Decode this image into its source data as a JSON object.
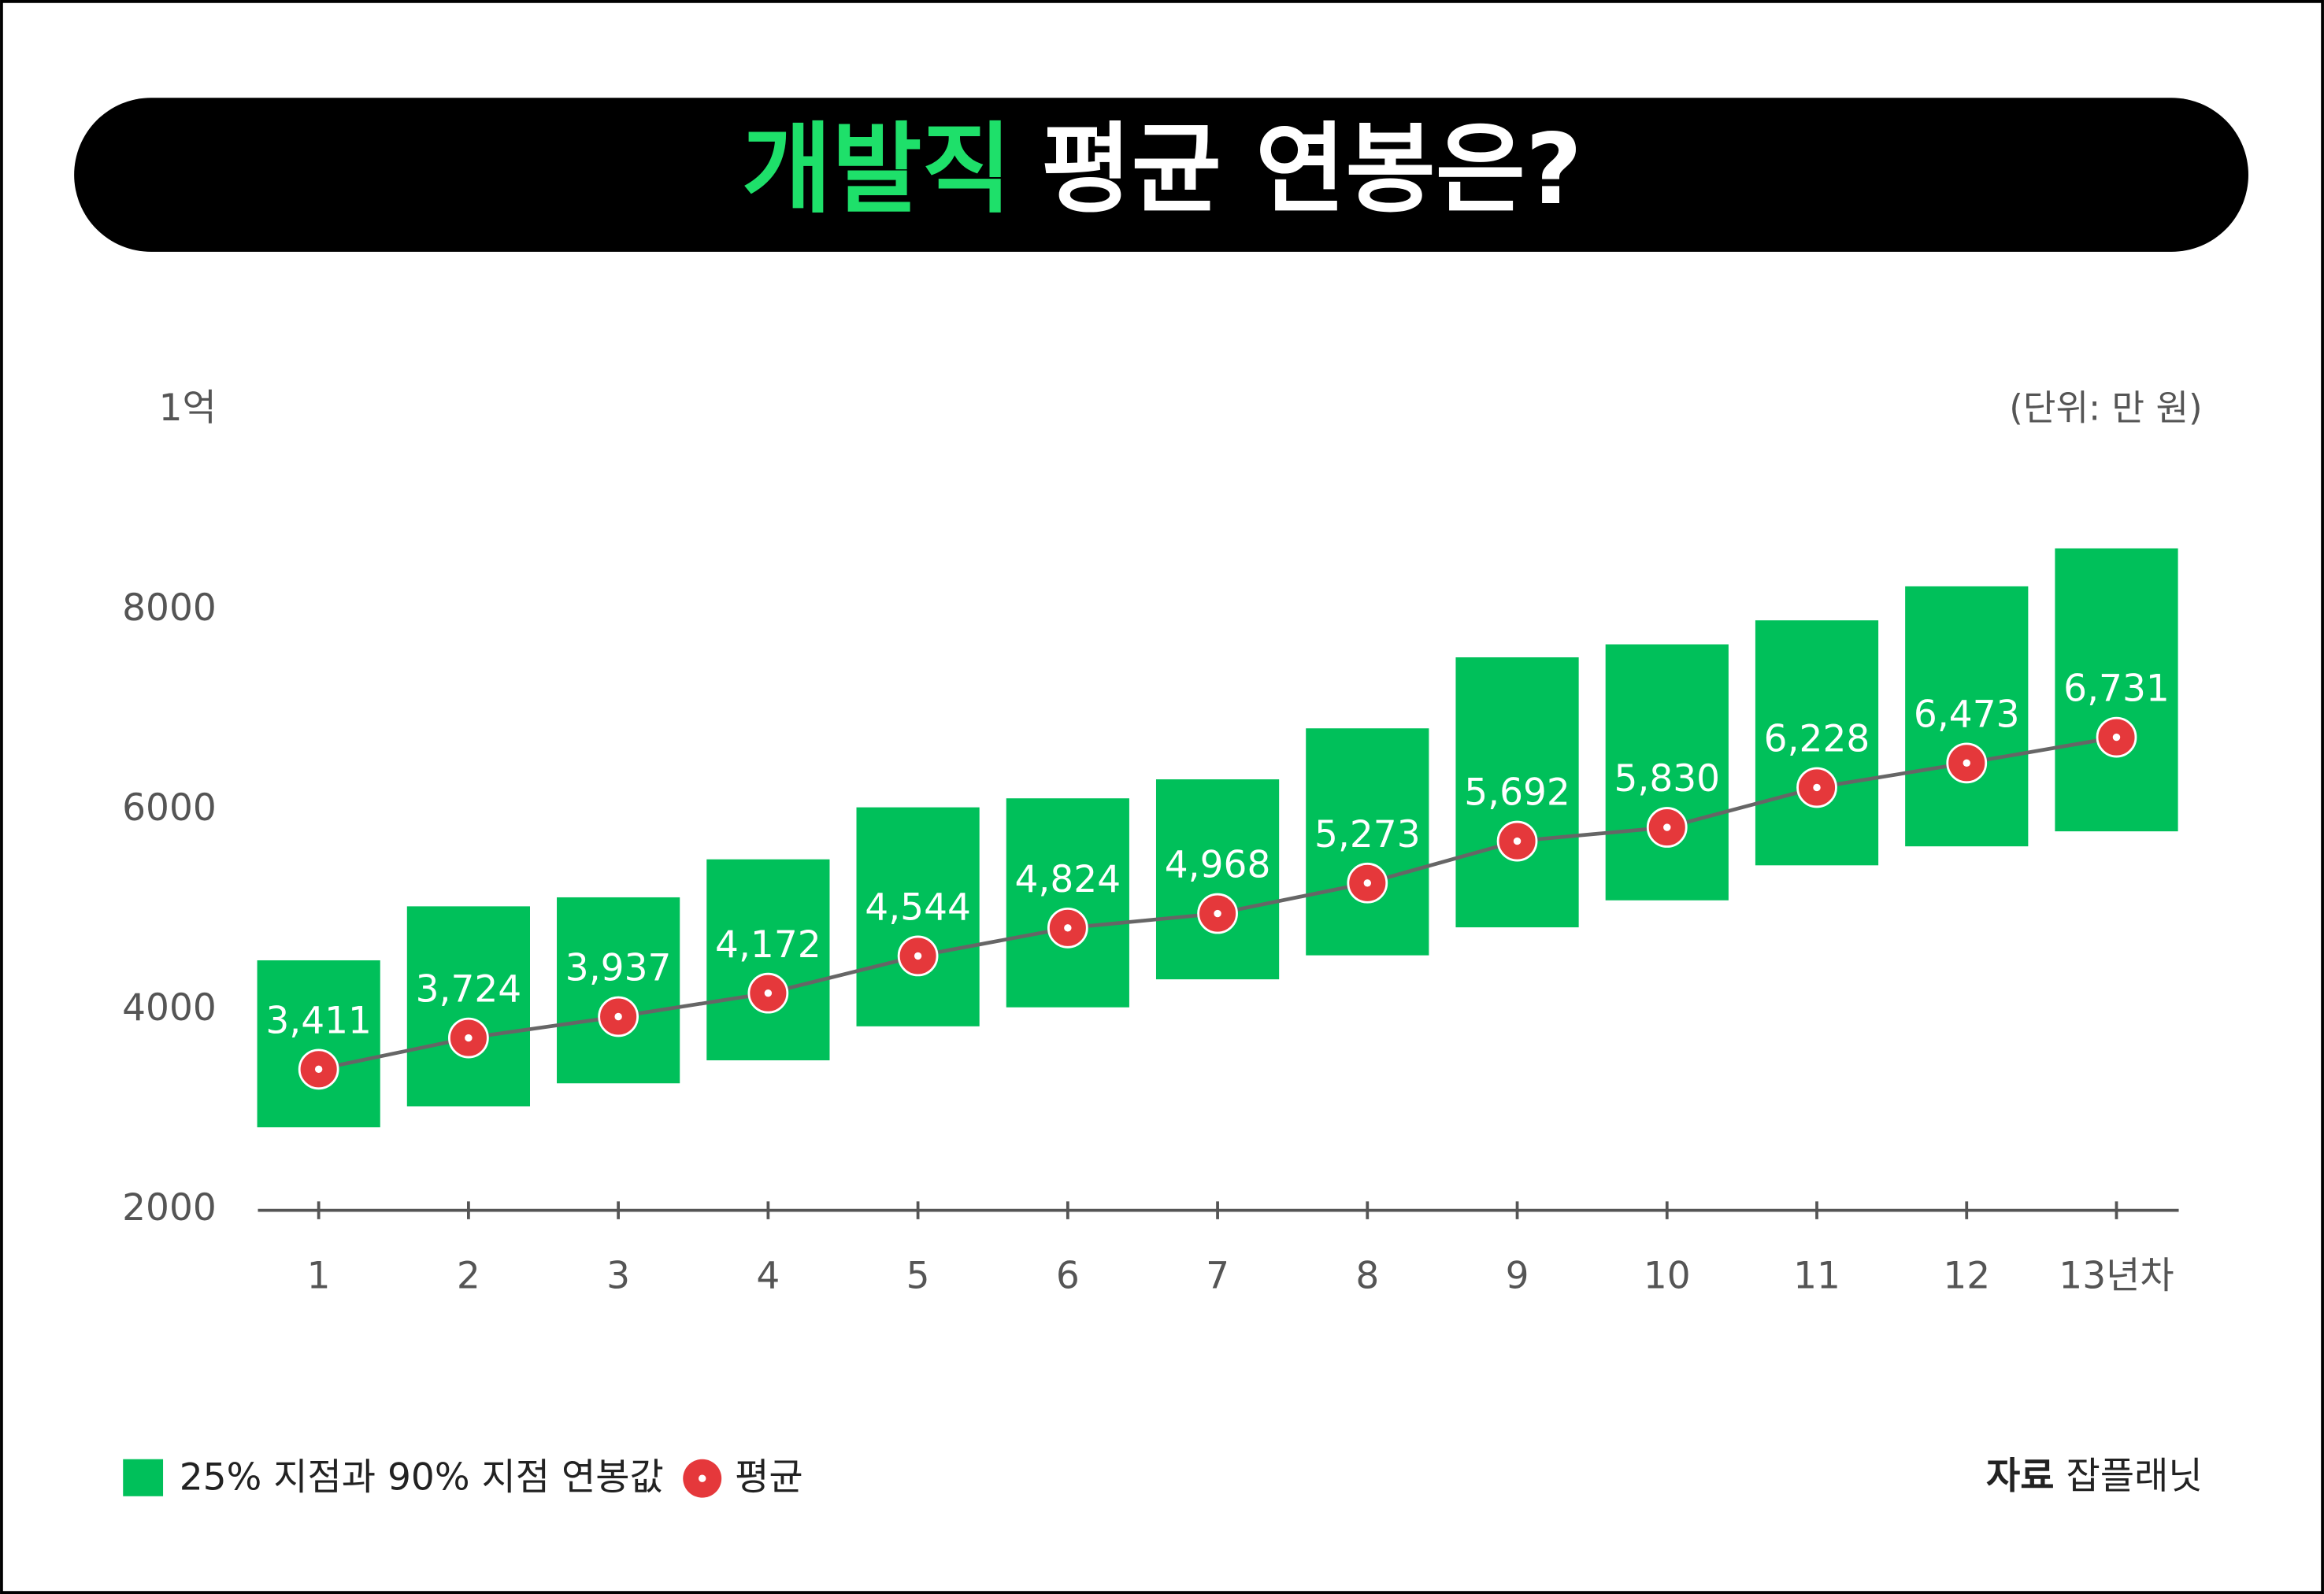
{
  "chart_data": {
    "type": "range_bar",
    "title": {
      "highlight": "개발직",
      "rest": "평균 연봉은?"
    },
    "unit_label": "(단위: 만 원)",
    "source": {
      "label": "자료",
      "name": "잡플래닛"
    },
    "categories": [
      "1",
      "2",
      "3",
      "4",
      "5",
      "6",
      "7",
      "8",
      "9",
      "10",
      "11",
      "12",
      "13년차"
    ],
    "series": [
      {
        "name": "25% 지점과 90% 지점 연봉값",
        "color": "#00c05a",
        "low": [
          2830,
          3040,
          3270,
          3500,
          3840,
          4030,
          4310,
          4550,
          4830,
          5100,
          5450,
          5640,
          5790
        ],
        "high": [
          4500,
          5040,
          5130,
          5510,
          6030,
          6120,
          6310,
          6820,
          7530,
          7660,
          7900,
          8240,
          8620
        ]
      },
      {
        "name": "평균",
        "color": "#e5383b",
        "values": [
          3411,
          3724,
          3937,
          4172,
          4544,
          4824,
          4968,
          5273,
          5692,
          5830,
          6228,
          6473,
          6731
        ],
        "value_labels": [
          "3,411",
          "3,724",
          "3,937",
          "4,172",
          "4,544",
          "4,824",
          "4,968",
          "5,273",
          "5,692",
          "5,830",
          "6,228",
          "6,473",
          "6,731"
        ]
      }
    ],
    "ylim": [
      2000,
      10000
    ],
    "yticks": [
      2000,
      4000,
      6000,
      8000,
      {
        "value": 10000,
        "label": "1억"
      }
    ],
    "grid": false
  }
}
